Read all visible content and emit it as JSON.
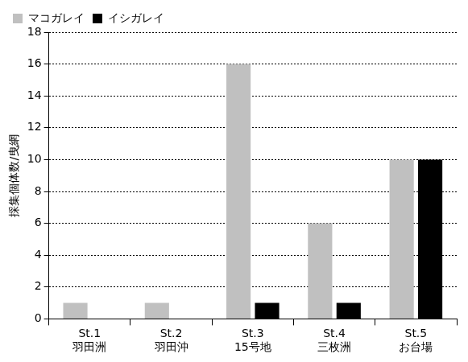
{
  "chart_data": {
    "type": "bar",
    "y_label": "採集個体数/曳網",
    "categories": [
      [
        "St.1",
        "羽田洲"
      ],
      [
        "St.2",
        "羽田沖"
      ],
      [
        "St.3",
        "15号地"
      ],
      [
        "St.4",
        "三枚洲"
      ],
      [
        "St.5",
        "お台場"
      ]
    ],
    "series": [
      {
        "name": "マコガレイ",
        "color": "#c0c0c0",
        "values": [
          1,
          1,
          16,
          6,
          10
        ]
      },
      {
        "name": "イシガレイ",
        "color": "#000000",
        "values": [
          0,
          0,
          1,
          1,
          10
        ]
      }
    ],
    "ylim": [
      0,
      18
    ],
    "yticks": [
      0,
      2,
      4,
      6,
      8,
      10,
      12,
      14,
      16,
      18
    ],
    "grid": true,
    "legend": "upper left"
  }
}
